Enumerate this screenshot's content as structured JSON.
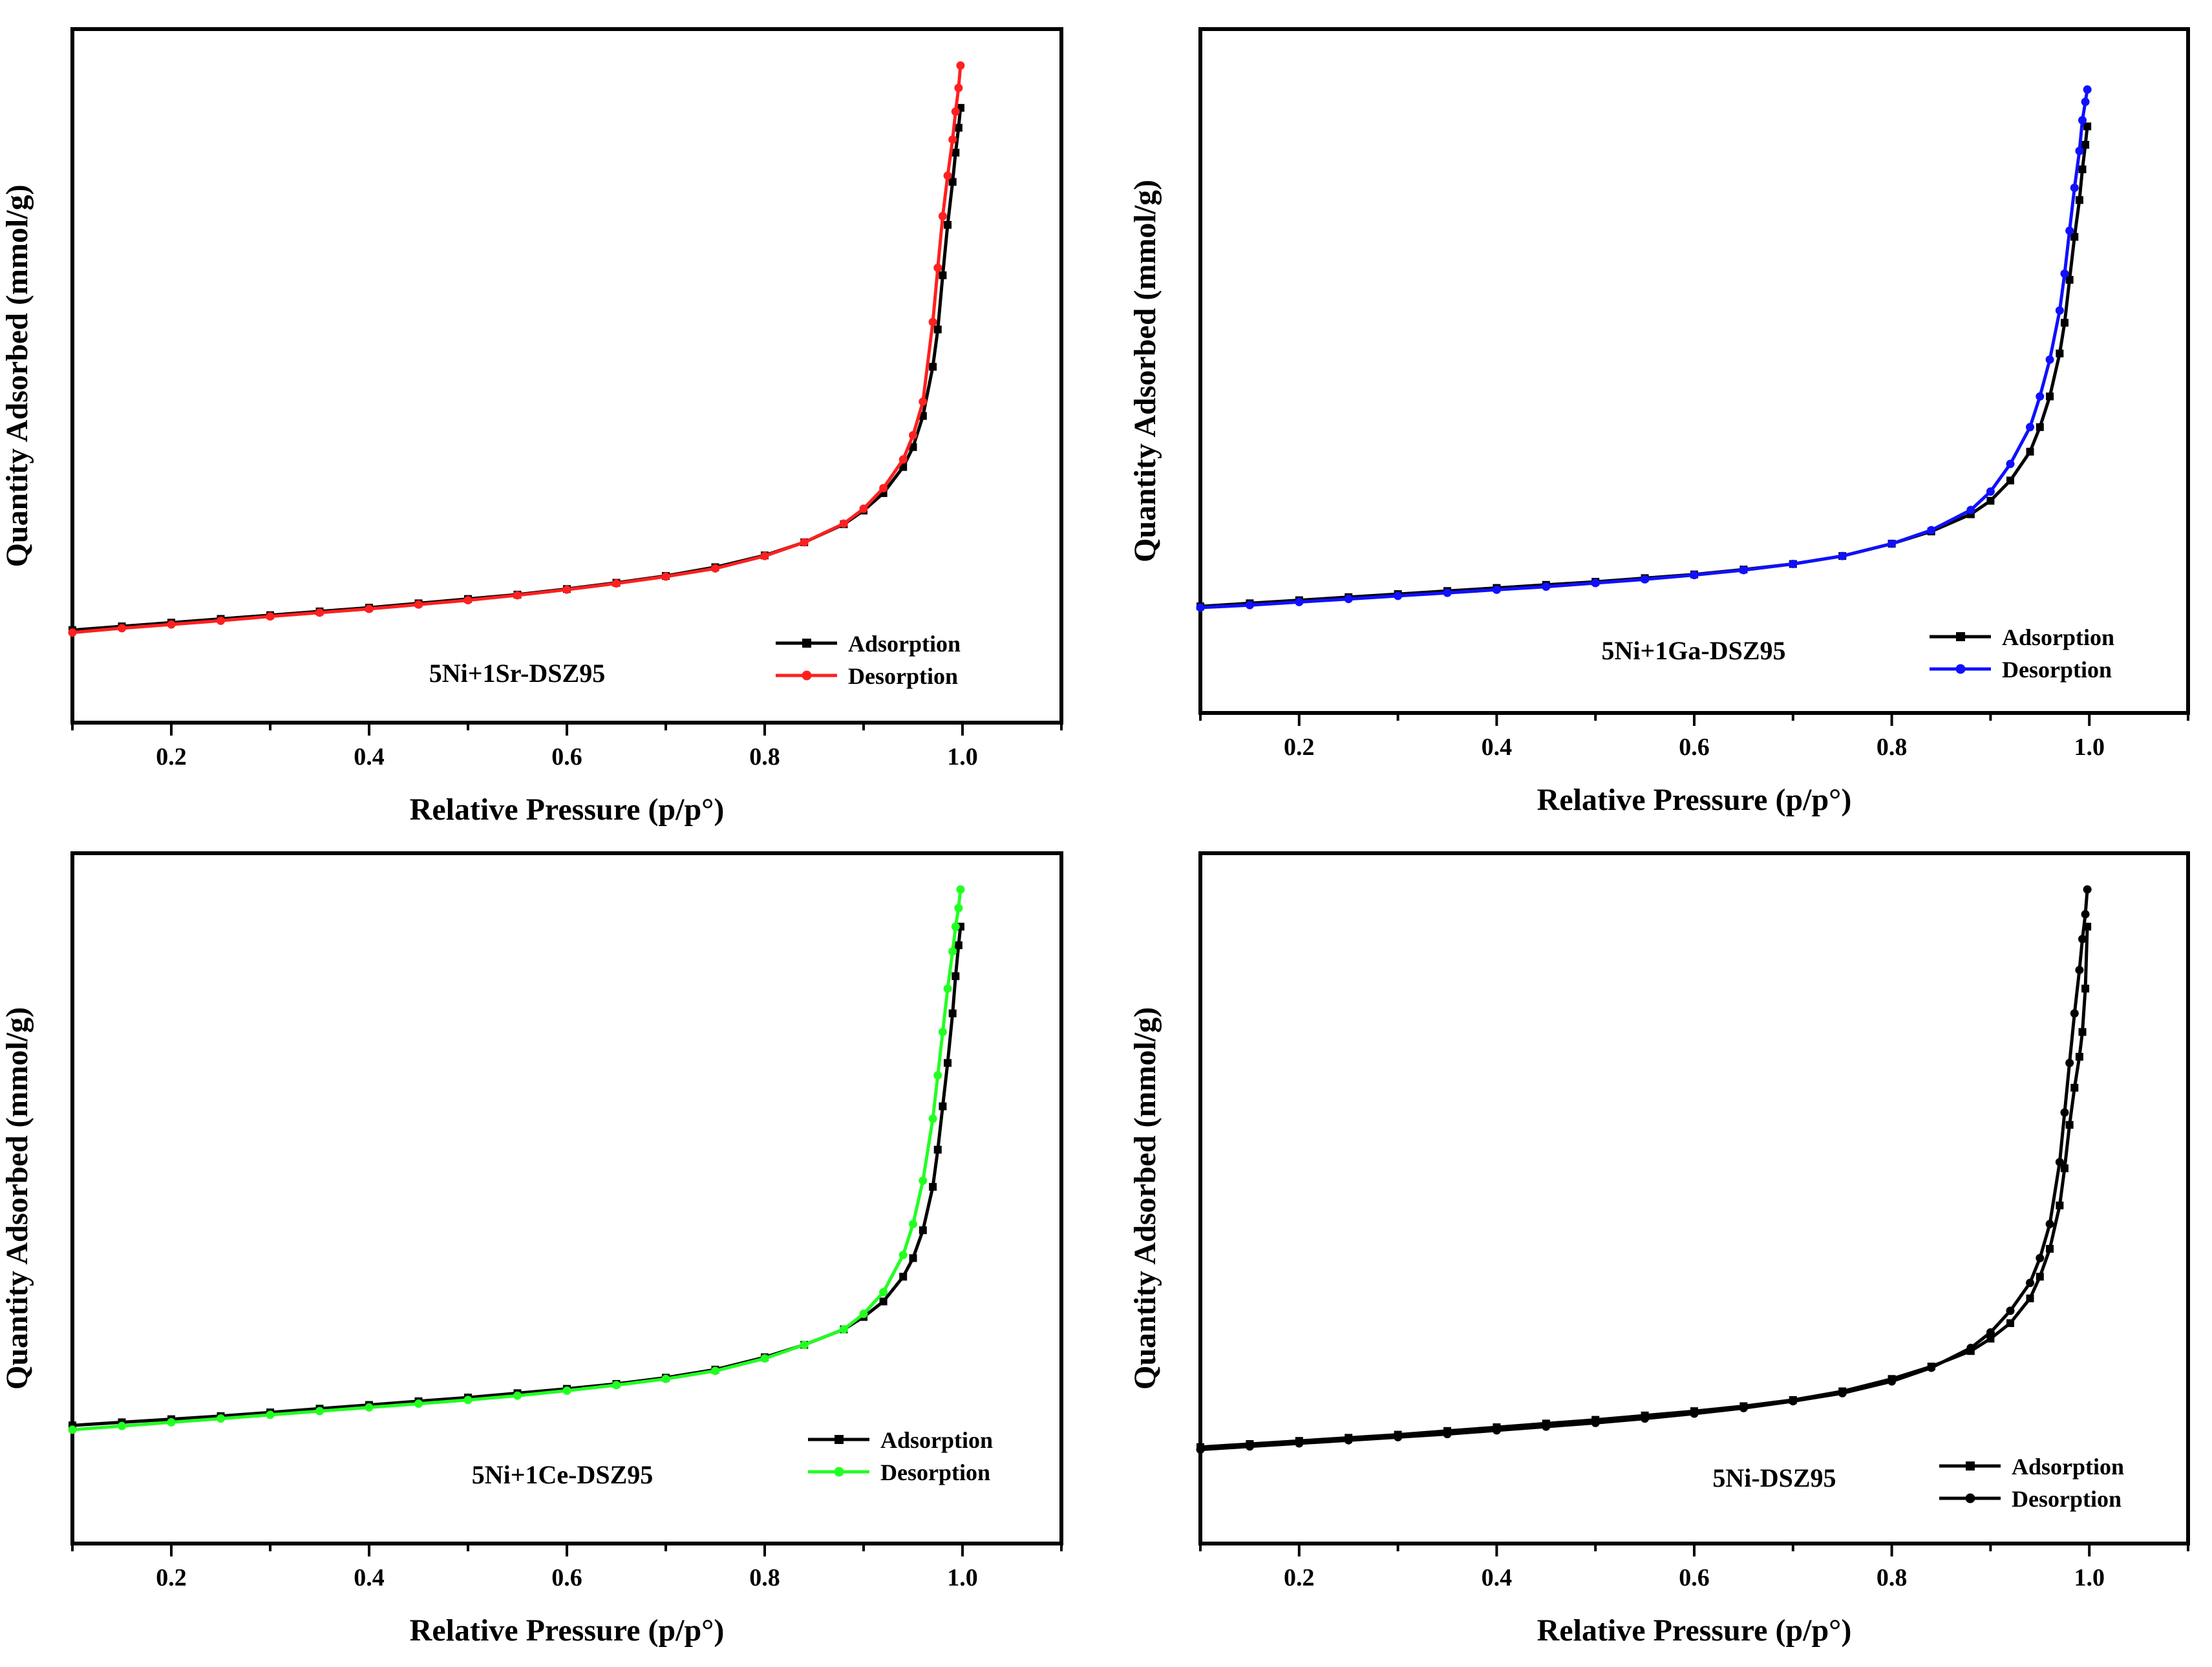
{
  "chart_data": [
    {
      "type": "line",
      "sample": "5Ni+1Sr-DSZ95",
      "xlabel": "Relative Pressure (p/p°)",
      "ylabel": "Quantity Adsorbed (mmol/g)",
      "xlim": [
        0.1,
        1.1
      ],
      "ylim": [
        0,
        100
      ],
      "xticks": [
        "0.2",
        "0.4",
        "0.6",
        "0.8",
        "1.0"
      ],
      "legend_position": "bottom-right",
      "series": [
        {
          "name": "Adsorption",
          "color": "#000000",
          "marker": "square",
          "x": [
            0.1,
            0.15,
            0.2,
            0.25,
            0.3,
            0.35,
            0.4,
            0.45,
            0.5,
            0.55,
            0.6,
            0.65,
            0.7,
            0.75,
            0.8,
            0.84,
            0.88,
            0.9,
            0.92,
            0.94,
            0.95,
            0.96,
            0.97,
            0.975,
            0.98,
            0.985,
            0.99,
            0.993,
            0.996,
            0.998
          ],
          "y": [
            9.3,
            9.9,
            10.5,
            11.1,
            11.7,
            12.3,
            12.9,
            13.6,
            14.3,
            15.0,
            15.9,
            16.9,
            18.0,
            19.4,
            21.3,
            23.4,
            26.3,
            28.5,
            31.3,
            35.5,
            38.7,
            43.7,
            51.6,
            57.6,
            66.3,
            74.4,
            81.3,
            86.0,
            90.0,
            93.2
          ]
        },
        {
          "name": "Desorption",
          "color": "#ff2020",
          "marker": "circle",
          "x": [
            0.998,
            0.996,
            0.993,
            0.99,
            0.985,
            0.98,
            0.975,
            0.97,
            0.96,
            0.95,
            0.94,
            0.92,
            0.9,
            0.88,
            0.84,
            0.8,
            0.75,
            0.7,
            0.65,
            0.6,
            0.55,
            0.5,
            0.45,
            0.4,
            0.35,
            0.3,
            0.25,
            0.2,
            0.15,
            0.1
          ],
          "y": [
            100,
            96.4,
            92.6,
            88.1,
            82.3,
            75.8,
            67.5,
            58.8,
            46.0,
            40.6,
            36.7,
            32.1,
            28.8,
            26.4,
            23.4,
            21.2,
            19.2,
            17.9,
            16.8,
            15.8,
            14.9,
            14.1,
            13.4,
            12.7,
            12.1,
            11.5,
            10.8,
            10.2,
            9.6,
            8.9
          ]
        }
      ]
    },
    {
      "type": "line",
      "sample": "5Ni+1Ga-DSZ95",
      "xlabel": "Relative Pressure (p/p°)",
      "ylabel": "Quantity Adsorbed (mmol/g)",
      "xlim": [
        0.1,
        1.1
      ],
      "ylim": [
        0,
        100
      ],
      "xticks": [
        "0.2",
        "0.4",
        "0.6",
        "0.8",
        "1.0"
      ],
      "legend_position": "bottom-right",
      "series": [
        {
          "name": "Adsorption",
          "color": "#000000",
          "marker": "square",
          "x": [
            0.1,
            0.15,
            0.2,
            0.25,
            0.3,
            0.35,
            0.4,
            0.45,
            0.5,
            0.55,
            0.6,
            0.65,
            0.7,
            0.75,
            0.8,
            0.84,
            0.88,
            0.9,
            0.92,
            0.94,
            0.95,
            0.96,
            0.97,
            0.975,
            0.98,
            0.985,
            0.99,
            0.993,
            0.996,
            0.998
          ],
          "y": [
            11.8,
            12.3,
            12.8,
            13.3,
            13.8,
            14.3,
            14.8,
            15.3,
            15.8,
            16.4,
            17.0,
            17.8,
            18.7,
            20.0,
            22.0,
            24.0,
            26.8,
            29.0,
            32.3,
            37.0,
            41.0,
            46.0,
            53.0,
            58.0,
            65.0,
            72.0,
            78.0,
            83.0,
            87.0,
            90.0
          ]
        },
        {
          "name": "Desorption",
          "color": "#1010ff",
          "marker": "circle",
          "x": [
            0.998,
            0.996,
            0.993,
            0.99,
            0.985,
            0.98,
            0.975,
            0.97,
            0.96,
            0.95,
            0.94,
            0.92,
            0.9,
            0.88,
            0.84,
            0.8,
            0.75,
            0.7,
            0.65,
            0.6,
            0.55,
            0.5,
            0.45,
            0.4,
            0.35,
            0.3,
            0.25,
            0.2,
            0.15,
            0.1
          ],
          "y": [
            96.0,
            94.0,
            91.0,
            86.0,
            80.0,
            73.0,
            66.0,
            60.0,
            52.0,
            46.0,
            41.0,
            35.0,
            30.5,
            27.5,
            24.2,
            22.0,
            20.0,
            18.7,
            17.7,
            16.9,
            16.2,
            15.6,
            15.0,
            14.5,
            14.0,
            13.5,
            13.0,
            12.5,
            12.0,
            11.6
          ]
        }
      ]
    },
    {
      "type": "line",
      "sample": "5Ni+1Ce-DSZ95",
      "xlabel": "Relative Pressure (p/p°)",
      "ylabel": "Quantity Adsorbed (mmol/g)",
      "xlim": [
        0.1,
        1.1
      ],
      "ylim": [
        0,
        100
      ],
      "xticks": [
        "0.2",
        "0.4",
        "0.6",
        "0.8",
        "1.0"
      ],
      "legend_position": "bottom-right",
      "series": [
        {
          "name": "Adsorption",
          "color": "#000000",
          "marker": "square",
          "x": [
            0.1,
            0.15,
            0.2,
            0.25,
            0.3,
            0.35,
            0.4,
            0.45,
            0.5,
            0.55,
            0.6,
            0.65,
            0.7,
            0.75,
            0.8,
            0.84,
            0.88,
            0.9,
            0.92,
            0.94,
            0.95,
            0.96,
            0.97,
            0.975,
            0.98,
            0.985,
            0.99,
            0.993,
            0.996,
            0.998
          ],
          "y": [
            13.5,
            14.0,
            14.5,
            15.0,
            15.6,
            16.2,
            16.8,
            17.4,
            18.0,
            18.7,
            19.4,
            20.2,
            21.2,
            22.5,
            24.5,
            26.5,
            29.0,
            31.0,
            33.5,
            37.5,
            40.5,
            45.0,
            52.0,
            58.0,
            65.0,
            72.0,
            80.0,
            86.0,
            91.0,
            94.0
          ]
        },
        {
          "name": "Desorption",
          "color": "#22ff22",
          "marker": "circle",
          "x": [
            0.998,
            0.996,
            0.993,
            0.99,
            0.985,
            0.98,
            0.975,
            0.97,
            0.96,
            0.95,
            0.94,
            0.92,
            0.9,
            0.88,
            0.84,
            0.8,
            0.75,
            0.7,
            0.65,
            0.6,
            0.55,
            0.5,
            0.45,
            0.4,
            0.35,
            0.3,
            0.25,
            0.2,
            0.15,
            0.1
          ],
          "y": [
            100,
            97.0,
            94.0,
            90.0,
            84.0,
            77.0,
            70.0,
            63.0,
            53.0,
            46.0,
            41.0,
            35.0,
            31.5,
            29.0,
            26.5,
            24.3,
            22.3,
            21.0,
            20.0,
            19.1,
            18.3,
            17.6,
            17.0,
            16.4,
            15.8,
            15.2,
            14.6,
            14.0,
            13.4,
            12.8
          ]
        }
      ]
    },
    {
      "type": "line",
      "sample": "5Ni-DSZ95",
      "xlabel": "Relative Pressure (p/p°)",
      "ylabel": "Quantity Adsorbed (mmol/g)",
      "xlim": [
        0.1,
        1.1
      ],
      "ylim": [
        0,
        100
      ],
      "xticks": [
        "0.2",
        "0.4",
        "0.6",
        "0.8",
        "1.0"
      ],
      "legend_position": "bottom-right",
      "series": [
        {
          "name": "Adsorption",
          "color": "#000000",
          "marker": "square",
          "x": [
            0.1,
            0.15,
            0.2,
            0.25,
            0.3,
            0.35,
            0.4,
            0.45,
            0.5,
            0.55,
            0.6,
            0.65,
            0.7,
            0.75,
            0.8,
            0.84,
            0.88,
            0.9,
            0.92,
            0.94,
            0.95,
            0.96,
            0.97,
            0.975,
            0.98,
            0.985,
            0.99,
            0.993,
            0.996,
            0.998
          ],
          "y": [
            10.0,
            10.5,
            11.0,
            11.5,
            12.0,
            12.6,
            13.2,
            13.8,
            14.4,
            15.1,
            15.8,
            16.6,
            17.6,
            19.0,
            21.0,
            23.0,
            25.5,
            27.5,
            30.0,
            34.0,
            37.5,
            42.0,
            49.0,
            55.0,
            62.0,
            68.0,
            73.0,
            77.0,
            84.0,
            94.0
          ]
        },
        {
          "name": "Desorption",
          "color": "#000000",
          "marker": "circle",
          "x": [
            0.998,
            0.996,
            0.993,
            0.99,
            0.985,
            0.98,
            0.975,
            0.97,
            0.96,
            0.95,
            0.94,
            0.92,
            0.9,
            0.88,
            0.84,
            0.8,
            0.75,
            0.7,
            0.65,
            0.6,
            0.55,
            0.5,
            0.45,
            0.4,
            0.35,
            0.3,
            0.25,
            0.2,
            0.15,
            0.1
          ],
          "y": [
            100,
            96.0,
            92.0,
            87.0,
            80.0,
            72.0,
            64.0,
            56.0,
            46.0,
            40.5,
            36.5,
            32.0,
            28.5,
            26.0,
            22.8,
            20.6,
            18.7,
            17.4,
            16.3,
            15.4,
            14.6,
            13.9,
            13.3,
            12.7,
            12.1,
            11.6,
            11.1,
            10.6,
            10.1,
            9.6
          ]
        }
      ]
    }
  ]
}
